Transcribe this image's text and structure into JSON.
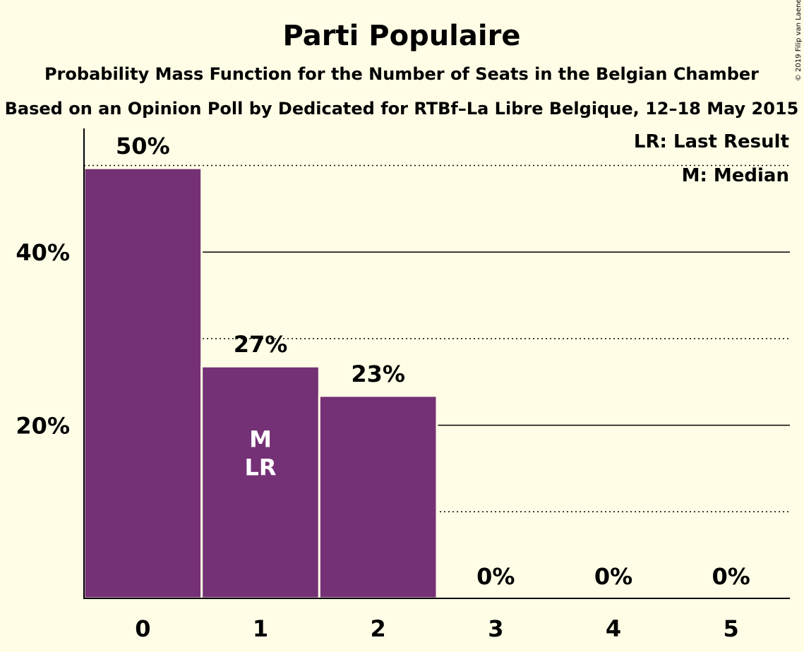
{
  "title": "Parti Populaire",
  "subtitle1": "Probability Mass Function for the Number of Seats in the Belgian Chamber",
  "subtitle2": "Based on an Opinion Poll by Dedicated for RTBf–La Libre Belgique, 12–18 May 2015",
  "legend": {
    "last_result": "LR: Last Result",
    "median": "M: Median"
  },
  "copyright": "© 2019 Filip van Laenen",
  "colors": {
    "bar": "#753176",
    "background": "#fffde6"
  },
  "chart_data": {
    "type": "bar",
    "categories": [
      "0",
      "1",
      "2",
      "3",
      "4",
      "5"
    ],
    "values": [
      49.7,
      26.8,
      23.4,
      0,
      0,
      0
    ],
    "value_labels": [
      "50%",
      "27%",
      "23%",
      "0%",
      "0%",
      "0%"
    ],
    "inner_labels": [
      "",
      "M\nLR",
      "",
      "",
      "",
      ""
    ],
    "y_ticks": [
      {
        "value": 20,
        "label": "20%"
      },
      {
        "value": 40,
        "label": "40%"
      }
    ],
    "dotted_gridlines": [
      10,
      30,
      50
    ],
    "solid_gridlines": [
      20,
      40
    ],
    "ylim": [
      0,
      54
    ],
    "median_seat": 1,
    "last_result_seat": 1
  }
}
